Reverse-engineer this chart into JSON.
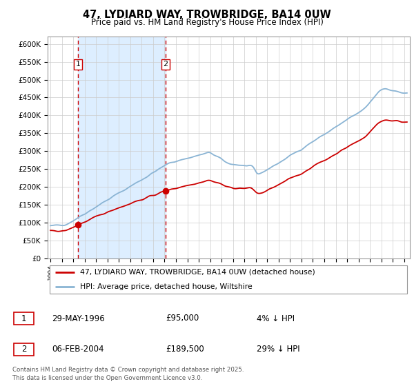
{
  "title1": "47, LYDIARD WAY, TROWBRIDGE, BA14 0UW",
  "title2": "Price paid vs. HM Land Registry's House Price Index (HPI)",
  "legend1": "47, LYDIARD WAY, TROWBRIDGE, BA14 0UW (detached house)",
  "legend2": "HPI: Average price, detached house, Wiltshire",
  "transaction1_date": "29-MAY-1996",
  "transaction1_price": 95000,
  "transaction1_pct": "4% ↓ HPI",
  "transaction1_date_num": 1996.41,
  "transaction2_date": "06-FEB-2004",
  "transaction2_price": 189500,
  "transaction2_pct": "29% ↓ HPI",
  "transaction2_date_num": 2004.1,
  "hpi_color": "#8ab4d4",
  "price_color": "#cc0000",
  "vline_color": "#cc0000",
  "shade_color": "#ddeeff",
  "background_color": "#ffffff",
  "grid_color": "#cccccc",
  "footer": "Contains HM Land Registry data © Crown copyright and database right 2025.\nThis data is licensed under the Open Government Licence v3.0.",
  "ylim": [
    0,
    620000
  ],
  "xlim_start": 1993.75,
  "xlim_end": 2025.5
}
